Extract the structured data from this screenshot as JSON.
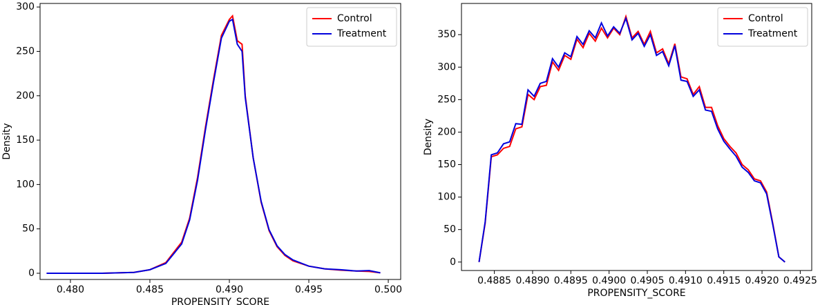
{
  "chart_data": [
    {
      "type": "line",
      "xlabel": "PROPENSITY_SCORE",
      "ylabel": "Density",
      "legend": "upper right",
      "xlim": [
        0.47809,
        0.50078
      ],
      "ylim": [
        -7,
        304
      ],
      "xticks": [
        {
          "value": 0.48,
          "label": "0.480"
        },
        0.485,
        {
          "value": 0.49,
          "label": "0.490"
        },
        0.495,
        {
          "value": 0.5,
          "label": "0.500"
        }
      ],
      "yticks": [
        0,
        50,
        100,
        150,
        200,
        250,
        300
      ],
      "x": [
        0.4785,
        0.482,
        0.484,
        0.485,
        0.486,
        0.487,
        0.4875,
        0.488,
        0.4885,
        0.489,
        0.4895,
        0.49,
        0.4902,
        0.4905,
        0.4908,
        0.491,
        0.4915,
        0.492,
        0.4925,
        0.493,
        0.4935,
        0.494,
        0.495,
        0.496,
        0.497,
        0.498,
        0.4988,
        0.4995
      ],
      "series": [
        {
          "name": "Control",
          "color": "#ff0000",
          "values": [
            0,
            0,
            1,
            4,
            12,
            35,
            62,
            108,
            165,
            218,
            268,
            286,
            290,
            262,
            258,
            200,
            130,
            80,
            48,
            30,
            20,
            14,
            8,
            5,
            3.5,
            2.5,
            2,
            0.5
          ]
        },
        {
          "name": "Treatment",
          "color": "#0000dd",
          "values": [
            0,
            0,
            1,
            4,
            11,
            33,
            60,
            105,
            162,
            215,
            265,
            284,
            286,
            258,
            250,
            198,
            130,
            81,
            49,
            31,
            21,
            15,
            8,
            5,
            4,
            2.5,
            3,
            0.5
          ]
        }
      ]
    },
    {
      "type": "line",
      "xlabel": "PROPENSITY_SCORE",
      "ylabel": "Density",
      "legend": "upper right",
      "xlim": [
        0.48807,
        0.49265
      ],
      "ylim": [
        -13,
        398
      ],
      "xticks": [
        0.4885,
        {
          "value": 0.489,
          "label": "0.4890"
        },
        0.4895,
        {
          "value": 0.49,
          "label": "0.4900"
        },
        0.4905,
        {
          "value": 0.491,
          "label": "0.4910"
        },
        0.4915,
        {
          "value": 0.492,
          "label": "0.4920"
        },
        0.4925
      ],
      "yticks": [
        0,
        50,
        100,
        150,
        200,
        250,
        300,
        350
      ],
      "x": [
        0.4883,
        0.48838,
        0.48846,
        0.48854,
        0.48862,
        0.4887,
        0.48878,
        0.48886,
        0.48894,
        0.48902,
        0.4891,
        0.48918,
        0.48926,
        0.48934,
        0.48942,
        0.4895,
        0.48958,
        0.48966,
        0.48974,
        0.48982,
        0.4899,
        0.48998,
        0.49006,
        0.49014,
        0.49022,
        0.4903,
        0.49038,
        0.49046,
        0.49054,
        0.49062,
        0.4907,
        0.49078,
        0.49086,
        0.49094,
        0.49102,
        0.4911,
        0.49118,
        0.49126,
        0.49134,
        0.49142,
        0.4915,
        0.49158,
        0.49166,
        0.49174,
        0.49182,
        0.4919,
        0.49198,
        0.49206,
        0.49214,
        0.49222,
        0.4923
      ],
      "series": [
        {
          "name": "Control",
          "color": "#ff0000",
          "values": [
            0,
            60,
            162,
            165,
            175,
            178,
            205,
            208,
            258,
            250,
            270,
            272,
            308,
            295,
            318,
            312,
            343,
            330,
            352,
            340,
            360,
            345,
            360,
            350,
            378,
            345,
            355,
            335,
            355,
            322,
            328,
            305,
            336,
            285,
            282,
            258,
            270,
            238,
            238,
            210,
            190,
            178,
            168,
            150,
            142,
            128,
            125,
            108,
            60,
            8,
            0
          ]
        },
        {
          "name": "Treatment",
          "color": "#0000dd",
          "values": [
            0,
            62,
            165,
            168,
            182,
            185,
            213,
            212,
            265,
            255,
            275,
            278,
            313,
            300,
            322,
            316,
            347,
            335,
            356,
            345,
            368,
            348,
            362,
            352,
            375,
            342,
            352,
            332,
            350,
            318,
            324,
            302,
            333,
            280,
            278,
            255,
            265,
            234,
            232,
            205,
            186,
            174,
            163,
            146,
            138,
            125,
            122,
            105,
            58,
            8,
            0
          ]
        }
      ]
    }
  ]
}
